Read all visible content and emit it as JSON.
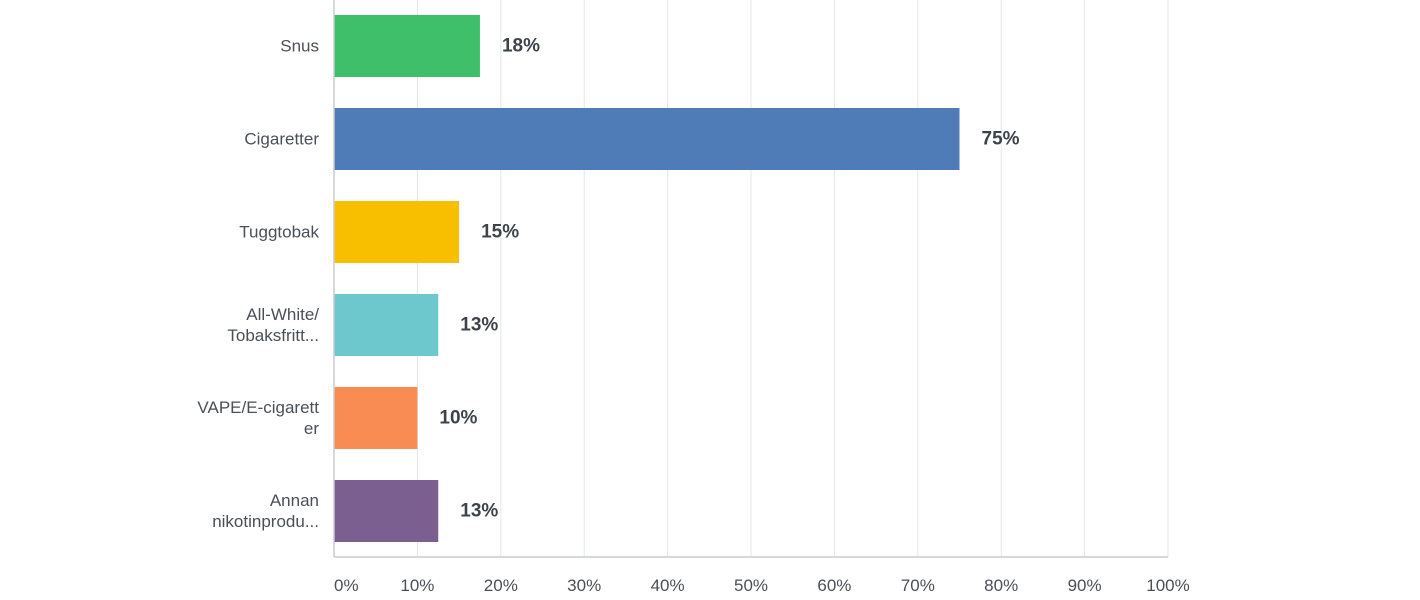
{
  "chart_data": {
    "type": "bar",
    "orientation": "horizontal",
    "categories": [
      [
        "Snus"
      ],
      [
        "Cigaretter"
      ],
      [
        "Tuggtobak"
      ],
      [
        "All-White/",
        "Tobaksfritt..."
      ],
      [
        "VAPE/E-cigarett",
        "er"
      ],
      [
        "Annan",
        "nikotinprodu..."
      ]
    ],
    "values": [
      17.5,
      75,
      15,
      12.5,
      10,
      12.5
    ],
    "value_labels": [
      "18%",
      "75%",
      "15%",
      "13%",
      "10%",
      "13%"
    ],
    "colors": [
      "#3fbf6a",
      "#4f7bb6",
      "#f8bf00",
      "#6cc8cc",
      "#f98c53",
      "#7c5f91"
    ],
    "xlim": [
      0,
      100
    ],
    "x_ticks": [
      0,
      10,
      20,
      30,
      40,
      50,
      60,
      70,
      80,
      90,
      100
    ],
    "x_tick_labels": [
      "0%",
      "10%",
      "20%",
      "30%",
      "40%",
      "50%",
      "60%",
      "70%",
      "80%",
      "90%",
      "100%"
    ],
    "grid": true,
    "title": "",
    "xlabel": "",
    "ylabel": ""
  }
}
